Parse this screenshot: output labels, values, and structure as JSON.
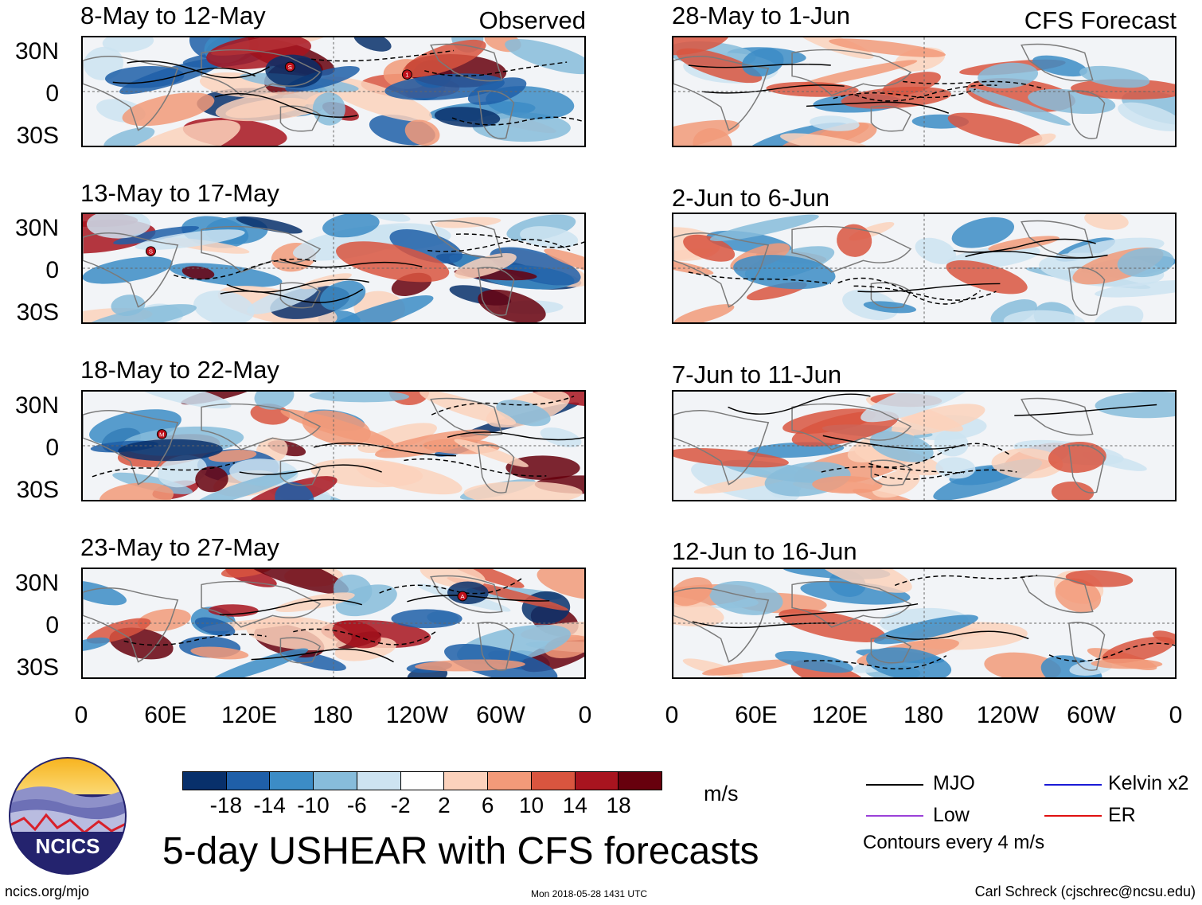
{
  "title": "5-day USHEAR with CFS forecasts",
  "columns": {
    "left_tag": "Observed",
    "right_tag": "CFS Forecast"
  },
  "panels_left": [
    {
      "title": "8-May to 12-May"
    },
    {
      "title": "13-May to 17-May"
    },
    {
      "title": "18-May to 22-May"
    },
    {
      "title": "23-May to 27-May"
    }
  ],
  "panels_right": [
    {
      "title": "28-May to 1-Jun"
    },
    {
      "title": "2-Jun to 6-Jun"
    },
    {
      "title": "7-Jun to 11-Jun"
    },
    {
      "title": "12-Jun to 16-Jun"
    }
  ],
  "lat_labels": [
    "30N",
    "0",
    "30S"
  ],
  "lon_labels": [
    "0",
    "60E",
    "120E",
    "180",
    "120W",
    "60W",
    "0"
  ],
  "colorbar": {
    "ticks": [
      "-18",
      "-14",
      "-10",
      "-6",
      "-2",
      "2",
      "6",
      "10",
      "14",
      "18"
    ],
    "colors": [
      "#08306b",
      "#1f5fa8",
      "#3c8cc6",
      "#87bcdb",
      "#cde3f1",
      "#ffffff",
      "#fcd2bc",
      "#f29a79",
      "#d9553f",
      "#a8141f",
      "#67000d"
    ],
    "units": "m/s"
  },
  "legend": {
    "items": [
      {
        "label": "MJO",
        "color": "#000000"
      },
      {
        "label": "Kelvin x2",
        "color": "#1a1ad6"
      },
      {
        "label": "Low",
        "color": "#9b40d8"
      },
      {
        "label": "ER",
        "color": "#e01010"
      }
    ],
    "contour_note": "Contours every 4 m/s"
  },
  "logo_text": "NCICS",
  "footer": {
    "left": "ncics.org/mjo",
    "center": "Mon 2018-05-28 1431 UTC",
    "right": "Carl Schreck (cjschrec@ncsu.edu)"
  },
  "storm_markers": [
    {
      "label": "S"
    },
    {
      "label": "1"
    },
    {
      "label": "S"
    },
    {
      "label": "M"
    },
    {
      "label": "A"
    }
  ]
}
